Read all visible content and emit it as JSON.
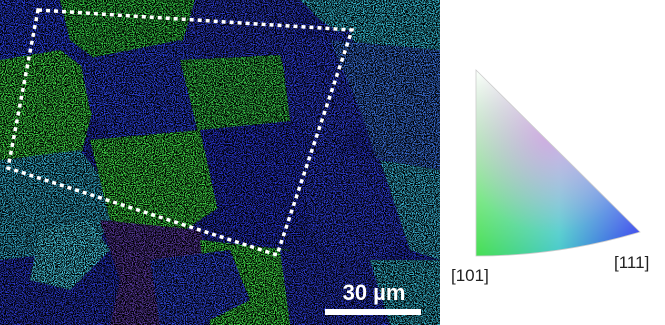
{
  "scale_bar": {
    "label": "30 µm"
  },
  "ipf_key": {
    "corner_101": "[101]",
    "corner_111": "[111]"
  },
  "colors": {
    "grain_blue": "#2a3bd6",
    "grain_green": "#3fd646",
    "grain_cyan": "#3fa6c8",
    "grain_purple": "#5a3aa0",
    "highlight_box": "#ffffff"
  }
}
